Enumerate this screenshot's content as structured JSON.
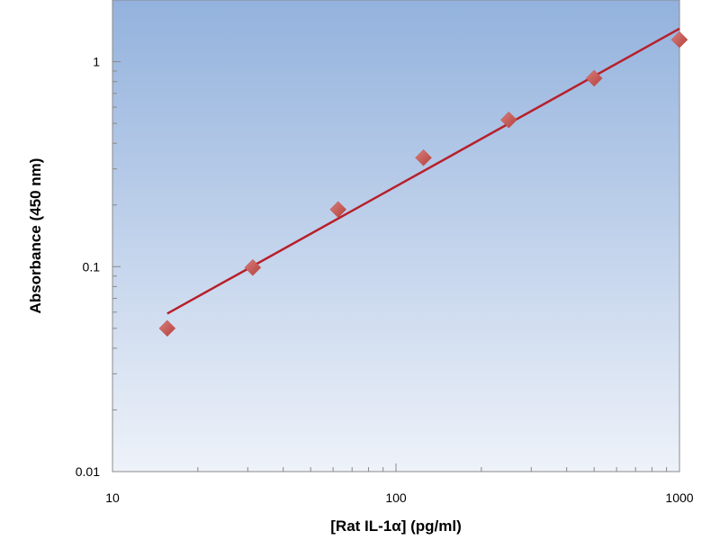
{
  "chart_data": {
    "type": "scatter",
    "title": "",
    "xlabel": "[Rat IL-1α] (pg/ml)",
    "ylabel": "Absorbance (450 nm)",
    "x_scale": "log",
    "y_scale": "log",
    "xlim": [
      10,
      1000
    ],
    "ylim": [
      0.01,
      2
    ],
    "x_ticks": [
      10,
      100,
      1000
    ],
    "x_tick_labels": [
      "10",
      "100",
      "1000"
    ],
    "y_ticks": [
      0.01,
      0.1,
      1
    ],
    "y_tick_labels": [
      "0.01",
      "0.1",
      "1"
    ],
    "grid": false,
    "legend": "none",
    "series": [
      {
        "type": "scatter",
        "marker": "diamond",
        "x": [
          15.6,
          31.25,
          62.5,
          125,
          250,
          500,
          1000
        ],
        "y": [
          0.05,
          0.099,
          0.19,
          0.34,
          0.52,
          0.83,
          1.28
        ]
      },
      {
        "type": "line",
        "x": [
          15.6,
          1000
        ],
        "y": [
          0.059,
          1.45
        ]
      }
    ],
    "colors": {
      "marker": "#c0504d",
      "fit_line": "#b81f2a",
      "plot_bg_top": "#93b2dd",
      "plot_bg_bottom": "#eef2f9"
    }
  }
}
